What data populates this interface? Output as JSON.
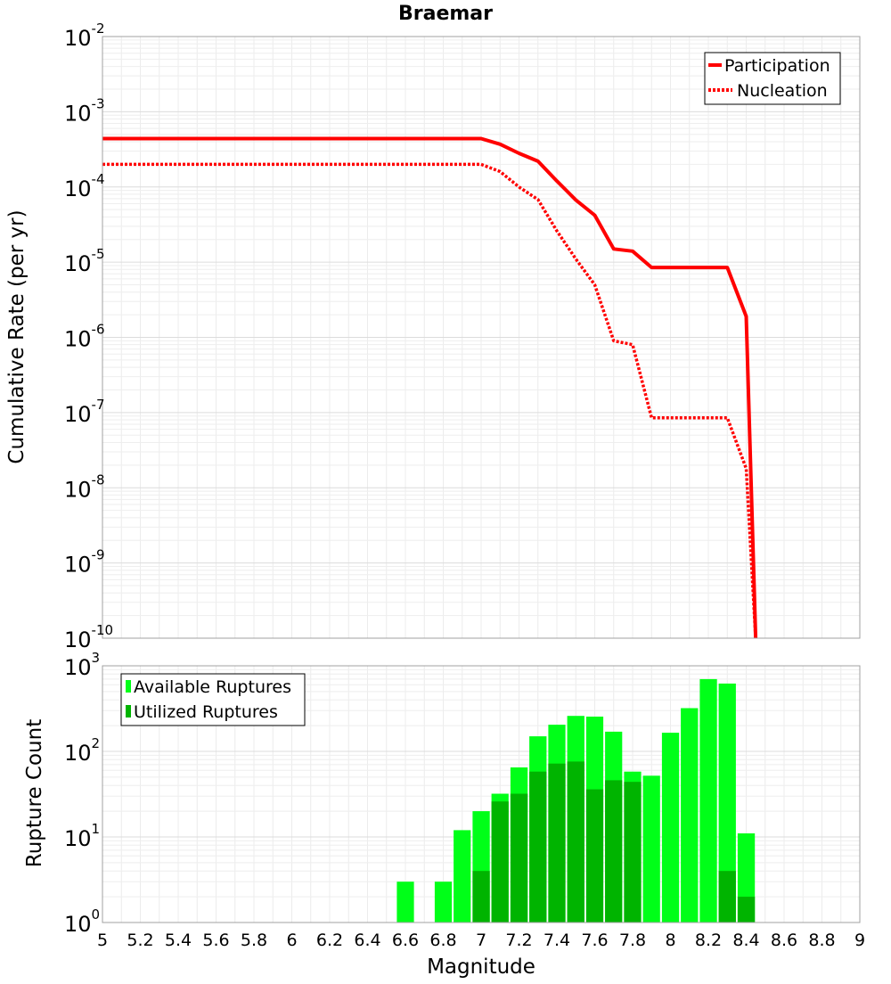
{
  "chart_data": [
    {
      "type": "line",
      "title": "Braemar",
      "xlabel": "",
      "ylabel": "Cumulative Rate (per yr)",
      "xlim": [
        5,
        9
      ],
      "ylim_exponents": [
        -10,
        -2
      ],
      "yscale": "log",
      "grid": true,
      "legend_placement": "top-right",
      "series": [
        {
          "name": "Participation",
          "style": "solid",
          "color": "#ff0000",
          "points": [
            [
              5.0,
              0.00044
            ],
            [
              7.0,
              0.00044
            ],
            [
              7.1,
              0.00037
            ],
            [
              7.2,
              0.00028
            ],
            [
              7.3,
              0.00022
            ],
            [
              7.4,
              0.00012
            ],
            [
              7.5,
              6.7e-05
            ],
            [
              7.6,
              4.2e-05
            ],
            [
              7.7,
              1.5e-05
            ],
            [
              7.8,
              1.4e-05
            ],
            [
              7.9,
              8.5e-06
            ],
            [
              8.0,
              8.5e-06
            ],
            [
              8.1,
              8.5e-06
            ],
            [
              8.2,
              8.5e-06
            ],
            [
              8.3,
              8.5e-06
            ],
            [
              8.4,
              1.9e-06
            ],
            [
              8.45,
              1e-10
            ]
          ]
        },
        {
          "name": "Nucleation",
          "style": "dotted",
          "color": "#ff0000",
          "points": [
            [
              5.0,
              0.0002
            ],
            [
              7.0,
              0.0002
            ],
            [
              7.1,
              0.00016
            ],
            [
              7.2,
              0.0001
            ],
            [
              7.3,
              6.8e-05
            ],
            [
              7.4,
              2.6e-05
            ],
            [
              7.5,
              1.1e-05
            ],
            [
              7.6,
              5e-06
            ],
            [
              7.7,
              9e-07
            ],
            [
              7.8,
              8e-07
            ],
            [
              7.9,
              8.5e-08
            ],
            [
              8.0,
              8.5e-08
            ],
            [
              8.1,
              8.5e-08
            ],
            [
              8.2,
              8.5e-08
            ],
            [
              8.3,
              8.5e-08
            ],
            [
              8.4,
              1.8e-08
            ],
            [
              8.45,
              1e-10
            ]
          ]
        }
      ]
    },
    {
      "type": "bar",
      "title": "",
      "xlabel": "Magnitude",
      "ylabel": "Rupture Count",
      "xlim": [
        5,
        9
      ],
      "ylim_exponents": [
        0,
        3
      ],
      "yscale": "log",
      "grid": true,
      "legend_placement": "top-left",
      "bin_width": 0.1,
      "series": [
        {
          "name": "Available Ruptures",
          "color": "#00ff18",
          "x": [
            6.6,
            6.8,
            6.9,
            7.0,
            7.1,
            7.2,
            7.3,
            7.4,
            7.5,
            7.6,
            7.7,
            7.8,
            7.9,
            8.0,
            8.1,
            8.2,
            8.3,
            8.4
          ],
          "values": [
            3,
            3,
            12,
            20,
            32,
            65,
            150,
            205,
            260,
            255,
            170,
            58,
            52,
            165,
            320,
            700,
            620,
            11
          ]
        },
        {
          "name": "Utilized Ruptures",
          "color": "#00b400",
          "x": [
            7.0,
            7.1,
            7.2,
            7.3,
            7.4,
            7.5,
            7.6,
            7.7,
            7.8,
            8.3,
            8.4
          ],
          "values": [
            4,
            26,
            32,
            58,
            72,
            76,
            36,
            46,
            44,
            4,
            2
          ]
        }
      ],
      "x_ticks": [
        "5",
        "5.2",
        "5.4",
        "5.6",
        "5.8",
        "6",
        "6.2",
        "6.4",
        "6.6",
        "6.8",
        "7",
        "7.2",
        "7.4",
        "7.6",
        "7.8",
        "8",
        "8.2",
        "8.4",
        "8.6",
        "8.8",
        "9"
      ]
    }
  ]
}
